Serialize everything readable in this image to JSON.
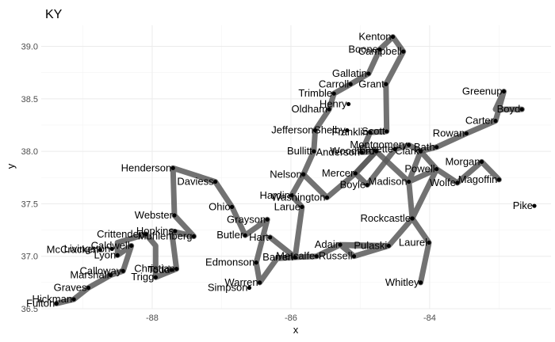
{
  "chart_data": {
    "type": "scatter",
    "title": "KY",
    "xlabel": "x",
    "ylabel": "y",
    "xlim": [
      -89.6,
      -82.25
    ],
    "ylim": [
      36.5,
      39.2
    ],
    "xticks": [
      -88,
      -86,
      -84
    ],
    "yticks": [
      36.5,
      37.0,
      37.5,
      38.0,
      38.5,
      39.0
    ],
    "xtick_labels": [
      "-88",
      "-86",
      "-84"
    ],
    "ytick_labels": [
      "36.5",
      "37.0",
      "37.5",
      "38.0",
      "38.5",
      "39.0"
    ],
    "grid": true,
    "colors": {
      "path": "#595959",
      "point": "#000000",
      "grid": "#ebebeb",
      "tick": "#4d4d4d"
    },
    "points": [
      {
        "name": "Fulton",
        "x": -89.38,
        "y": 36.55
      },
      {
        "name": "Hickman",
        "x": -89.13,
        "y": 36.59
      },
      {
        "name": "Graves",
        "x": -88.92,
        "y": 36.7
      },
      {
        "name": "Marshall",
        "x": -88.6,
        "y": 36.82
      },
      {
        "name": "McCracken",
        "x": -88.75,
        "y": 37.06
      },
      {
        "name": "Livingston",
        "x": -88.58,
        "y": 37.07
      },
      {
        "name": "Calloway",
        "x": -88.42,
        "y": 36.86
      },
      {
        "name": "Trigg",
        "x": -87.95,
        "y": 36.8
      },
      {
        "name": "Christian",
        "x": -87.65,
        "y": 36.88
      },
      {
        "name": "Todd",
        "x": -87.72,
        "y": 36.87
      },
      {
        "name": "Caldwell",
        "x": -88.3,
        "y": 37.1
      },
      {
        "name": "Lyon",
        "x": -88.5,
        "y": 37.01
      },
      {
        "name": "Crittenden",
        "x": -88.09,
        "y": 37.21
      },
      {
        "name": "Hopkins",
        "x": -87.67,
        "y": 37.24
      },
      {
        "name": "Muhlenberg",
        "x": -87.4,
        "y": 37.19
      },
      {
        "name": "Webster",
        "x": -87.68,
        "y": 37.39
      },
      {
        "name": "Henderson",
        "x": -87.7,
        "y": 37.84
      },
      {
        "name": "Daviess",
        "x": -87.09,
        "y": 37.71
      },
      {
        "name": "Ohio",
        "x": -86.85,
        "y": 37.47
      },
      {
        "name": "Butler",
        "x": -86.66,
        "y": 37.2
      },
      {
        "name": "Grayson",
        "x": -86.34,
        "y": 37.35
      },
      {
        "name": "Edmonson",
        "x": -86.5,
        "y": 36.94
      },
      {
        "name": "Warren",
        "x": -86.45,
        "y": 36.75
      },
      {
        "name": "Barren",
        "x": -85.94,
        "y": 36.99
      },
      {
        "name": "Metcalfe",
        "x": -85.63,
        "y": 37.0
      },
      {
        "name": "Hart",
        "x": -86.3,
        "y": 37.18
      },
      {
        "name": "Larue",
        "x": -85.84,
        "y": 37.47
      },
      {
        "name": "Hardin",
        "x": -85.99,
        "y": 37.58
      },
      {
        "name": "Nelson",
        "x": -85.82,
        "y": 37.78
      },
      {
        "name": "Washington",
        "x": -85.48,
        "y": 37.56
      },
      {
        "name": "Bullitt",
        "x": -85.67,
        "y": 38.0
      },
      {
        "name": "Jefferson",
        "x": -85.65,
        "y": 38.2
      },
      {
        "name": "Oldham",
        "x": -85.45,
        "y": 38.4
      },
      {
        "name": "Henry",
        "x": -85.17,
        "y": 38.45
      },
      {
        "name": "Shelby",
        "x": -85.19,
        "y": 38.2
      },
      {
        "name": "Trimble",
        "x": -85.38,
        "y": 38.55
      },
      {
        "name": "Carroll",
        "x": -85.14,
        "y": 38.64
      },
      {
        "name": "Gallatin",
        "x": -84.88,
        "y": 38.74
      },
      {
        "name": "Boone",
        "x": -84.72,
        "y": 38.97
      },
      {
        "name": "Kenton",
        "x": -84.53,
        "y": 39.09
      },
      {
        "name": "Campbell",
        "x": -84.38,
        "y": 38.95
      },
      {
        "name": "Grant",
        "x": -84.63,
        "y": 38.64
      },
      {
        "name": "Scott",
        "x": -84.62,
        "y": 38.19
      },
      {
        "name": "Franklin",
        "x": -84.86,
        "y": 38.18
      },
      {
        "name": "Anderson",
        "x": -84.98,
        "y": 37.99
      },
      {
        "name": "Woodford",
        "x": -84.77,
        "y": 38.0
      },
      {
        "name": "Mercer",
        "x": -85.07,
        "y": 37.79
      },
      {
        "name": "Boyle",
        "x": -84.9,
        "y": 37.68
      },
      {
        "name": "Fayette",
        "x": -84.5,
        "y": 38.02
      },
      {
        "name": "Montgomery",
        "x": -84.3,
        "y": 38.06
      },
      {
        "name": "Clark",
        "x": -84.13,
        "y": 38.0
      },
      {
        "name": "Bath",
        "x": -83.9,
        "y": 38.04
      },
      {
        "name": "Rowan",
        "x": -83.47,
        "y": 38.17
      },
      {
        "name": "Powell",
        "x": -83.9,
        "y": 37.83
      },
      {
        "name": "Madison",
        "x": -84.3,
        "y": 37.71
      },
      {
        "name": "Wolfe",
        "x": -83.6,
        "y": 37.7
      },
      {
        "name": "Morgan",
        "x": -83.25,
        "y": 37.9
      },
      {
        "name": "Magoffin",
        "x": -83.0,
        "y": 37.73
      },
      {
        "name": "Carter",
        "x": -83.05,
        "y": 38.29
      },
      {
        "name": "Greenup",
        "x": -82.93,
        "y": 38.57
      },
      {
        "name": "Boyd",
        "x": -82.67,
        "y": 38.4
      },
      {
        "name": "Rockcastle",
        "x": -84.25,
        "y": 37.36
      },
      {
        "name": "Laurel",
        "x": -84.01,
        "y": 37.13
      },
      {
        "name": "Whitley",
        "x": -84.13,
        "y": 36.75
      },
      {
        "name": "Pulaski",
        "x": -84.59,
        "y": 37.1
      },
      {
        "name": "Adair",
        "x": -85.29,
        "y": 37.11
      },
      {
        "name": "Russell",
        "x": -85.09,
        "y": 37.0
      },
      {
        "name": "Pike",
        "x": -82.49,
        "y": 37.48
      },
      {
        "name": "Simpson",
        "x": -86.6,
        "y": 36.7
      }
    ],
    "path": [
      [
        -89.38,
        36.55
      ],
      [
        -89.13,
        36.59
      ],
      [
        -88.92,
        36.7
      ],
      [
        -88.6,
        36.82
      ],
      [
        -88.42,
        36.86
      ],
      [
        -88.3,
        37.1
      ],
      [
        -88.5,
        37.01
      ],
      [
        -88.5,
        37.13
      ],
      [
        -88.09,
        37.21
      ],
      [
        -87.95,
        37.1
      ],
      [
        -87.95,
        36.8
      ],
      [
        -87.65,
        36.88
      ],
      [
        -87.72,
        37.24
      ],
      [
        -87.4,
        37.19
      ],
      [
        -87.68,
        37.39
      ],
      [
        -87.7,
        37.84
      ],
      [
        -87.09,
        37.71
      ],
      [
        -86.85,
        37.47
      ],
      [
        -86.66,
        37.2
      ],
      [
        -86.34,
        37.35
      ],
      [
        -86.5,
        36.94
      ],
      [
        -86.45,
        36.75
      ],
      [
        -86.2,
        36.98
      ],
      [
        -85.94,
        36.99
      ],
      [
        -85.63,
        37.0
      ],
      [
        -85.29,
        37.11
      ],
      [
        -85.09,
        37.0
      ],
      [
        -84.59,
        37.1
      ],
      [
        -85.29,
        37.11
      ],
      [
        -85.09,
        37.1
      ],
      [
        -84.59,
        37.1
      ],
      [
        -84.25,
        37.36
      ],
      [
        -84.01,
        37.13
      ],
      [
        -84.13,
        36.75
      ]
    ],
    "path2": [
      [
        -86.3,
        37.18
      ],
      [
        -86.3,
        37.18
      ],
      [
        -85.94,
        36.99
      ],
      [
        -85.84,
        37.47
      ],
      [
        -85.99,
        37.58
      ],
      [
        -85.82,
        37.78
      ],
      [
        -85.67,
        38.0
      ],
      [
        -85.65,
        38.2
      ],
      [
        -85.45,
        38.4
      ],
      [
        -85.38,
        38.55
      ],
      [
        -85.14,
        38.64
      ],
      [
        -84.88,
        38.74
      ],
      [
        -84.72,
        38.97
      ],
      [
        -84.53,
        39.09
      ],
      [
        -84.38,
        38.95
      ],
      [
        -84.63,
        38.64
      ],
      [
        -84.62,
        38.19
      ],
      [
        -84.86,
        38.18
      ],
      [
        -84.98,
        37.99
      ],
      [
        -84.77,
        38.0
      ],
      [
        -85.07,
        37.79
      ],
      [
        -84.9,
        37.68
      ],
      [
        -84.5,
        38.02
      ],
      [
        -84.3,
        38.06
      ],
      [
        -84.13,
        38.0
      ],
      [
        -83.9,
        38.04
      ],
      [
        -83.47,
        38.17
      ],
      [
        -83.05,
        38.29
      ],
      [
        -82.93,
        38.57
      ],
      [
        -83.05,
        38.4
      ],
      [
        -82.67,
        38.4
      ]
    ],
    "path3": [
      [
        -85.82,
        37.78
      ],
      [
        -85.48,
        37.56
      ],
      [
        -85.07,
        37.79
      ],
      [
        -84.77,
        38.0
      ],
      [
        -84.3,
        37.71
      ],
      [
        -84.13,
        38.0
      ],
      [
        -83.9,
        37.83
      ],
      [
        -84.3,
        37.71
      ],
      [
        -84.25,
        37.36
      ],
      [
        -83.9,
        37.83
      ],
      [
        -83.6,
        37.7
      ],
      [
        -83.25,
        37.9
      ],
      [
        -83.0,
        37.73
      ]
    ]
  }
}
